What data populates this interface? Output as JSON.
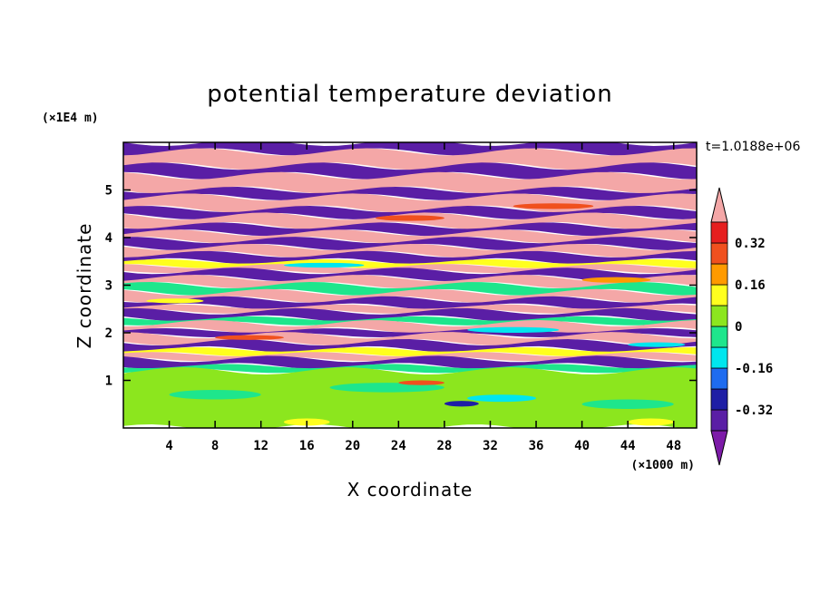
{
  "chart_data": {
    "type": "heatmap",
    "title": "potential temperature deviation",
    "xlabel": "X coordinate",
    "ylabel": "Z coordinate",
    "x_unit": "(×1000 m)",
    "y_unit": "(×1E4 m)",
    "time_label": "t=1.0188e+06",
    "xlim": [
      0,
      50
    ],
    "ylim": [
      0,
      6
    ],
    "x_ticks": [
      4,
      8,
      12,
      16,
      20,
      24,
      28,
      32,
      36,
      40,
      44,
      48
    ],
    "y_ticks": [
      1,
      2,
      3,
      4,
      5
    ],
    "colorbar": {
      "levels": [
        -0.4,
        -0.32,
        -0.24,
        -0.16,
        -0.08,
        0,
        0.08,
        0.16,
        0.24,
        0.32,
        0.4
      ],
      "labels": [
        "-0.32",
        "-0.16",
        "0",
        "0.16",
        "0.32"
      ],
      "label_values": [
        -0.32,
        -0.16,
        0,
        0.16,
        0.32
      ],
      "under_color": "#7d1ba8",
      "over_color": "#f4a7a7",
      "colors": [
        "#5a1ea5",
        "#1e1ea5",
        "#1e6cf0",
        "#00e6ee",
        "#1ee68c",
        "#8ce61e",
        "#ffff1e",
        "#ff9a00",
        "#f0501e",
        "#e61e1e"
      ]
    },
    "bands": [
      {
        "z": [
          5.8,
          6.0
        ],
        "color": "#5a1ea5"
      },
      {
        "z": [
          5.5,
          5.8
        ],
        "color": "#f4a7a7"
      },
      {
        "z": [
          5.3,
          5.5
        ],
        "color": "#5a1ea5"
      },
      {
        "z": [
          5.0,
          5.3
        ],
        "color": "#f4a7a7"
      },
      {
        "z": [
          4.85,
          5.0
        ],
        "color": "#5a1ea5"
      },
      {
        "z": [
          4.6,
          4.85
        ],
        "color": "#f4a7a7"
      },
      {
        "z": [
          4.45,
          4.6
        ],
        "color": "#5a1ea5"
      },
      {
        "z": [
          4.25,
          4.45
        ],
        "color": "#f4a7a7"
      },
      {
        "z": [
          4.1,
          4.25
        ],
        "color": "#5a1ea5"
      },
      {
        "z": [
          3.95,
          4.1
        ],
        "color": "#f4a7a7"
      },
      {
        "z": [
          3.8,
          3.95
        ],
        "color": "#5a1ea5"
      },
      {
        "z": [
          3.65,
          3.8
        ],
        "color": "#f4a7a7"
      },
      {
        "z": [
          3.5,
          3.65
        ],
        "color": "#5a1ea5"
      },
      {
        "z": [
          3.4,
          3.5
        ],
        "color": "#ffff1e"
      },
      {
        "z": [
          3.3,
          3.4
        ],
        "color": "#f4a7a7"
      },
      {
        "z": [
          3.15,
          3.3
        ],
        "color": "#5a1ea5"
      },
      {
        "z": [
          3.0,
          3.15
        ],
        "color": "#f4a7a7"
      },
      {
        "z": [
          2.85,
          3.0
        ],
        "color": "#1ee68c"
      },
      {
        "z": [
          2.7,
          2.85
        ],
        "color": "#f4a7a7"
      },
      {
        "z": [
          2.55,
          2.7
        ],
        "color": "#5a1ea5"
      },
      {
        "z": [
          2.45,
          2.55
        ],
        "color": "#f4a7a7"
      },
      {
        "z": [
          2.3,
          2.45
        ],
        "color": "#5a1ea5"
      },
      {
        "z": [
          2.2,
          2.3
        ],
        "color": "#1ee68c"
      },
      {
        "z": [
          2.05,
          2.2
        ],
        "color": "#f4a7a7"
      },
      {
        "z": [
          1.95,
          2.05
        ],
        "color": "#5a1ea5"
      },
      {
        "z": [
          1.8,
          1.95
        ],
        "color": "#f4a7a7"
      },
      {
        "z": [
          1.65,
          1.8
        ],
        "color": "#5a1ea5"
      },
      {
        "z": [
          1.55,
          1.65
        ],
        "color": "#ffff1e"
      },
      {
        "z": [
          1.45,
          1.55
        ],
        "color": "#f4a7a7"
      },
      {
        "z": [
          1.3,
          1.45
        ],
        "color": "#5a1ea5"
      },
      {
        "z": [
          1.2,
          1.3
        ],
        "color": "#1ee68c"
      },
      {
        "z": [
          0.0,
          1.2
        ],
        "color": "#8ce61e"
      }
    ],
    "patches": [
      {
        "x": 2,
        "z": 2.62,
        "w": 5,
        "h": 0.1,
        "color": "#ffff1e"
      },
      {
        "x": 14,
        "z": 3.37,
        "w": 7,
        "h": 0.1,
        "color": "#00e6ee"
      },
      {
        "x": 22,
        "z": 4.35,
        "w": 6,
        "h": 0.12,
        "color": "#f0501e"
      },
      {
        "x": 30,
        "z": 2.0,
        "w": 8,
        "h": 0.12,
        "color": "#00e6ee"
      },
      {
        "x": 40,
        "z": 3.05,
        "w": 6,
        "h": 0.12,
        "color": "#ff9a00"
      },
      {
        "x": 44,
        "z": 1.7,
        "w": 5,
        "h": 0.1,
        "color": "#00e6ee"
      },
      {
        "x": 8,
        "z": 1.85,
        "w": 6,
        "h": 0.1,
        "color": "#f0501e"
      },
      {
        "x": 34,
        "z": 4.6,
        "w": 7,
        "h": 0.12,
        "color": "#f0501e"
      },
      {
        "x": 4,
        "z": 0.6,
        "w": 8,
        "h": 0.2,
        "color": "#1ee68c"
      },
      {
        "x": 18,
        "z": 0.75,
        "w": 10,
        "h": 0.2,
        "color": "#1ee68c"
      },
      {
        "x": 30,
        "z": 0.55,
        "w": 6,
        "h": 0.15,
        "color": "#00e6ee"
      },
      {
        "x": 40,
        "z": 0.4,
        "w": 8,
        "h": 0.2,
        "color": "#1ee68c"
      },
      {
        "x": 14,
        "z": 0.05,
        "w": 4,
        "h": 0.15,
        "color": "#ffff1e"
      },
      {
        "x": 44,
        "z": 0.05,
        "w": 4,
        "h": 0.15,
        "color": "#ffff1e"
      },
      {
        "x": 24,
        "z": 0.9,
        "w": 4,
        "h": 0.1,
        "color": "#f0501e"
      },
      {
        "x": 28,
        "z": 0.45,
        "w": 3,
        "h": 0.12,
        "color": "#1e1ea5"
      }
    ]
  }
}
